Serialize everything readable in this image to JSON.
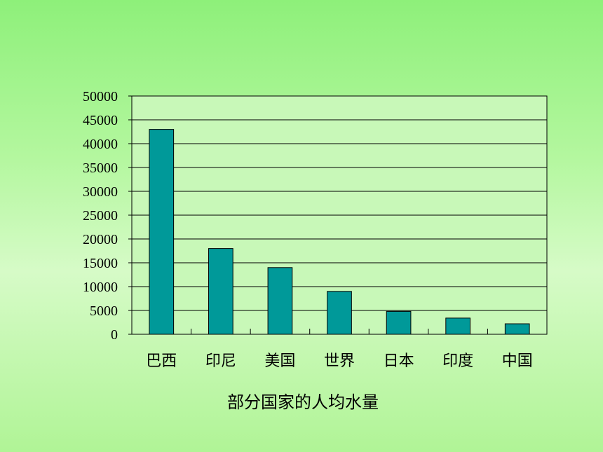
{
  "chart_data": {
    "type": "bar",
    "title": "部分国家的人均水量",
    "categories": [
      "巴西",
      "印尼",
      "美国",
      "世界",
      "日本",
      "印度",
      "中国"
    ],
    "values": [
      43000,
      18000,
      14000,
      9000,
      4800,
      3400,
      2200
    ],
    "ylim": [
      0,
      50000
    ],
    "yticks": [
      "0",
      "5000",
      "10000",
      "15000",
      "20000",
      "25000",
      "30000",
      "35000",
      "40000",
      "45000",
      "50000"
    ],
    "grid": true,
    "colors": {
      "bar": "#009999",
      "plot_background": "#c8f8b8",
      "gridline": "#000000"
    }
  }
}
